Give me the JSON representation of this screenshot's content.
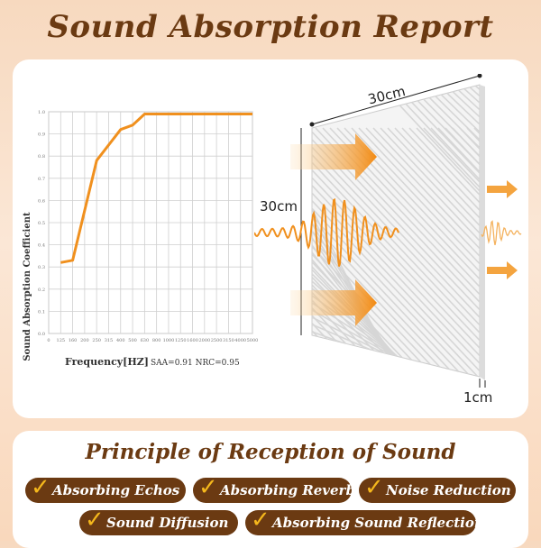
{
  "header": {
    "title": "Sound Absorption Report"
  },
  "chart_data": {
    "type": "line",
    "ylabel": "Sound Absorption Coefficient",
    "xlabel": "Frequency[HZ]",
    "note": "SAA=0.91 NRC=0.95",
    "ylim": [
      0,
      1.0
    ],
    "y_ticks": [
      "0.0",
      "0.1",
      "0.2",
      "0.3",
      "0.4",
      "0.5",
      "0.6",
      "0.7",
      "0.8",
      "0.9",
      "1.0"
    ],
    "x_ticks": [
      "0",
      "125",
      "160",
      "200",
      "250",
      "315",
      "400",
      "500",
      "630",
      "800",
      "1000",
      "1250",
      "1600",
      "2000",
      "2500",
      "3150",
      "4000",
      "5000"
    ],
    "x": [
      "125",
      "160",
      "250",
      "400",
      "500",
      "630",
      "800",
      "1000",
      "1250",
      "1600",
      "2000",
      "2500",
      "3150",
      "4000",
      "5000"
    ],
    "values": [
      0.32,
      0.33,
      0.78,
      0.92,
      0.94,
      0.99,
      0.99,
      0.99,
      0.99,
      0.99,
      0.99,
      0.99,
      0.99,
      0.99,
      0.99
    ],
    "grid": true,
    "line_color": "#f0901e"
  },
  "panel": {
    "width_label": "30cm",
    "height_label": "30cm",
    "thickness_label": "1cm"
  },
  "principle": {
    "title": "Principle of Reception of Sound",
    "check_icon": "check-icon",
    "items": [
      "Absorbing Echos",
      "Absorbing Reverb",
      "Noise Reduction",
      "Sound Diffusion",
      "Absorbing Sound Reflection"
    ]
  },
  "colors": {
    "brown": "#6b3a12",
    "orange": "#f0901e",
    "gold": "#f5b81c"
  }
}
